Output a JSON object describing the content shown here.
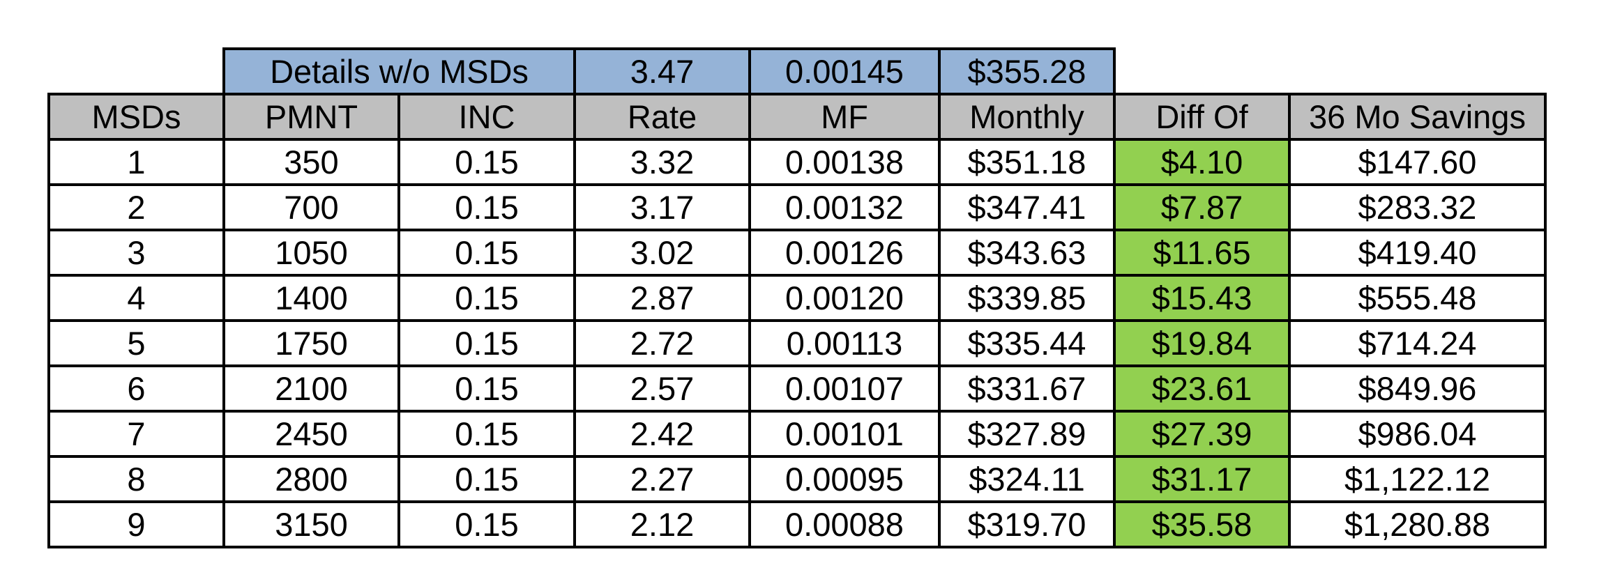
{
  "summary": {
    "label": "Details w/o MSDs",
    "rate": "3.47",
    "mf": "0.00145",
    "monthly": "$355.28"
  },
  "headers": [
    "MSDs",
    "PMNT",
    "INC",
    "Rate",
    "MF",
    "Monthly",
    "Diff Of",
    "36 Mo Savings"
  ],
  "rows": [
    [
      "1",
      "350",
      "0.15",
      "3.32",
      "0.00138",
      "$351.18",
      "$4.10",
      "$147.60"
    ],
    [
      "2",
      "700",
      "0.15",
      "3.17",
      "0.00132",
      "$347.41",
      "$7.87",
      "$283.32"
    ],
    [
      "3",
      "1050",
      "0.15",
      "3.02",
      "0.00126",
      "$343.63",
      "$11.65",
      "$419.40"
    ],
    [
      "4",
      "1400",
      "0.15",
      "2.87",
      "0.00120",
      "$339.85",
      "$15.43",
      "$555.48"
    ],
    [
      "5",
      "1750",
      "0.15",
      "2.72",
      "0.00113",
      "$335.44",
      "$19.84",
      "$714.24"
    ],
    [
      "6",
      "2100",
      "0.15",
      "2.57",
      "0.00107",
      "$331.67",
      "$23.61",
      "$849.96"
    ],
    [
      "7",
      "2450",
      "0.15",
      "2.42",
      "0.00101",
      "$327.89",
      "$27.39",
      "$986.04"
    ],
    [
      "8",
      "2800",
      "0.15",
      "2.27",
      "0.00095",
      "$324.11",
      "$31.17",
      "$1,122.12"
    ],
    [
      "9",
      "3150",
      "0.15",
      "2.12",
      "0.00088",
      "$319.70",
      "$35.58",
      "$1,280.88"
    ]
  ],
  "colors": {
    "summary_fill": "#95b3d7",
    "header_fill": "#bfbfbf",
    "diff_fill": "#92d050",
    "grid": "#000000"
  }
}
